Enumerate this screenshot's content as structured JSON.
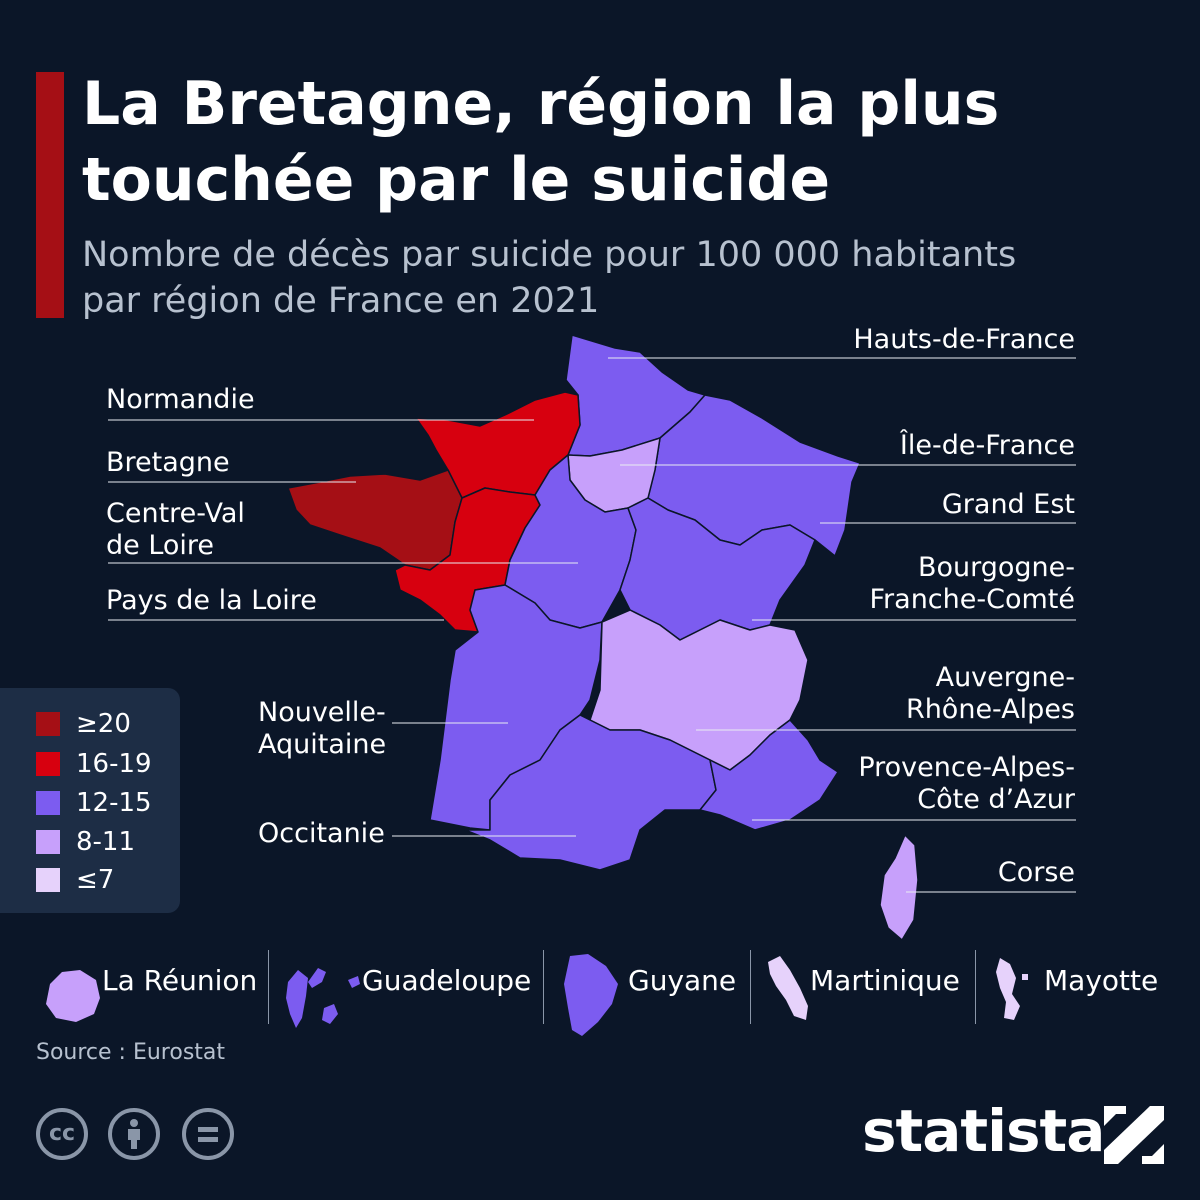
{
  "header": {
    "title_line1": "La Bretagne, région la plus",
    "title_line2": "touchée par le suicide",
    "subtitle_line1": "Nombre de décès par suicide pour 100 000 habitants",
    "subtitle_line2": "par région de France en 2021"
  },
  "colors": {
    "background": "#0b1628",
    "accent": "#a50f15",
    "class_20_plus": "#a50f15",
    "class_16_19": "#d7000f",
    "class_12_15": "#7c5cf0",
    "class_8_11": "#c7a0fb",
    "class_7_minus": "#e6d2fb"
  },
  "regions": [
    {
      "name": "Hauts-de-France",
      "class": "12-15"
    },
    {
      "name": "Normandie",
      "class": "16-19"
    },
    {
      "name": "Île-de-France",
      "class": "8-11"
    },
    {
      "name": "Bretagne",
      "class": "≥20"
    },
    {
      "name": "Grand Est",
      "class": "12-15"
    },
    {
      "name": "Centre-Val de Loire",
      "label_line1": "Centre-Val",
      "label_line2": "de Loire",
      "class": "12-15"
    },
    {
      "name": "Bourgogne-Franche-Comté",
      "label_line1": "Bourgogne-",
      "label_line2": "Franche-Comté",
      "class": "12-15"
    },
    {
      "name": "Pays de la Loire",
      "class": "16-19"
    },
    {
      "name": "Auvergne-Rhône-Alpes",
      "label_line1": "Auvergne-",
      "label_line2": "Rhône-Alpes",
      "class": "8-11"
    },
    {
      "name": "Nouvelle-Aquitaine",
      "label_line1": "Nouvelle-",
      "label_line2": "Aquitaine",
      "class": "12-15"
    },
    {
      "name": "Provence-Alpes-Côte d’Azur",
      "label_line1": "Provence-Alpes-",
      "label_line2": "Côte d’Azur",
      "class": "12-15"
    },
    {
      "name": "Occitanie",
      "class": "12-15"
    },
    {
      "name": "Corse",
      "class": "8-11"
    }
  ],
  "legend": [
    {
      "label": "≥20",
      "color": "#a50f15"
    },
    {
      "label": "16-19",
      "color": "#d7000f"
    },
    {
      "label": "12-15",
      "color": "#7c5cf0"
    },
    {
      "label": "8-11",
      "color": "#c7a0fb"
    },
    {
      "label": "≤7",
      "color": "#e6d2fb"
    }
  ],
  "overseas": [
    {
      "name": "La Réunion",
      "class": "8-11"
    },
    {
      "name": "Guadeloupe",
      "class": "12-15"
    },
    {
      "name": "Guyane",
      "class": "12-15"
    },
    {
      "name": "Martinique",
      "class": "≤7"
    },
    {
      "name": "Mayotte",
      "class": "≤7"
    }
  ],
  "footer": {
    "source": "Source : Eurostat",
    "brand": "statista",
    "license_icons": [
      "cc-icon",
      "attribution-icon",
      "no-derivatives-icon"
    ]
  }
}
